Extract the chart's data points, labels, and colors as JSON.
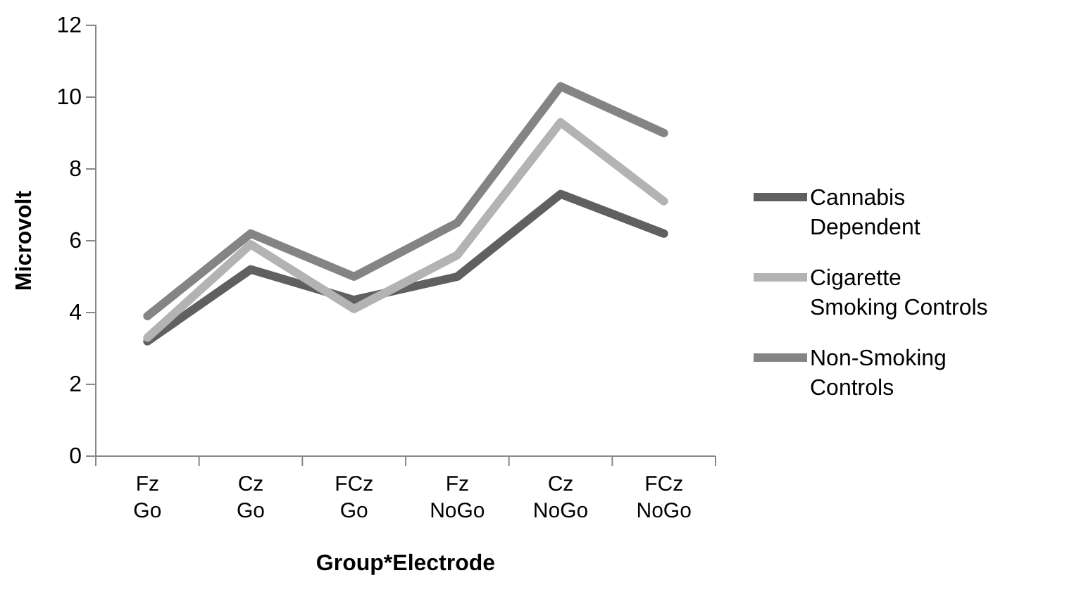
{
  "chart_data": {
    "type": "line",
    "xlabel": "Group*Electrode",
    "ylabel": "Microvolt",
    "categories": [
      "Fz Go",
      "Cz Go",
      "FCz Go",
      "Fz NoGo",
      "Cz NoGo",
      "FCz NoGo"
    ],
    "ylim": [
      0,
      12
    ],
    "yticks": [
      0,
      2,
      4,
      6,
      8,
      10,
      12
    ],
    "grid": false,
    "legend": "right",
    "marker": "none",
    "series": [
      {
        "name": "Cannabis Dependent",
        "color": "#606060",
        "values": [
          3.2,
          5.2,
          4.35,
          5.0,
          7.3,
          6.2
        ]
      },
      {
        "name": "Cigarette Smoking Controls",
        "color": "#b3b3b3",
        "values": [
          3.3,
          5.9,
          4.1,
          5.6,
          9.3,
          7.1
        ]
      },
      {
        "name": "Non-Smoking Controls",
        "color": "#848484",
        "values": [
          3.9,
          6.2,
          5.0,
          6.5,
          10.3,
          9.0
        ]
      }
    ]
  }
}
